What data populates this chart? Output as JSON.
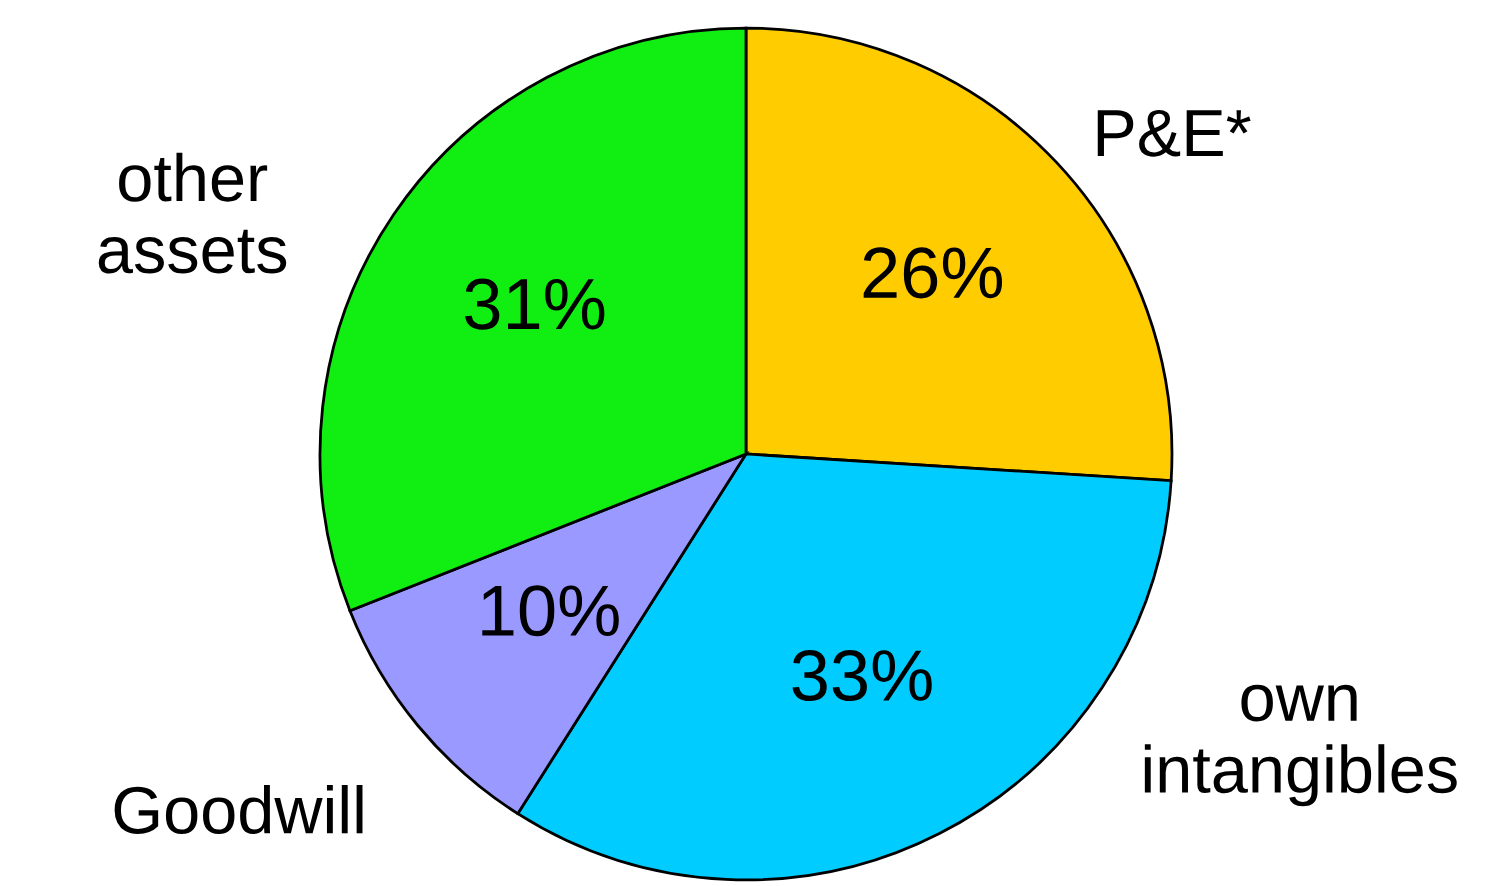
{
  "chart_data": {
    "type": "pie",
    "categories": [
      "P&E*",
      "own\nintangibles",
      "Goodwill",
      "other\nassets"
    ],
    "values": [
      26,
      33,
      10,
      31
    ],
    "value_labels": [
      "26%",
      "33%",
      "10%",
      "31%"
    ],
    "colors": [
      "#ffcc00",
      "#00ccff",
      "#9999ff",
      "#11ee11"
    ],
    "legend": false
  }
}
